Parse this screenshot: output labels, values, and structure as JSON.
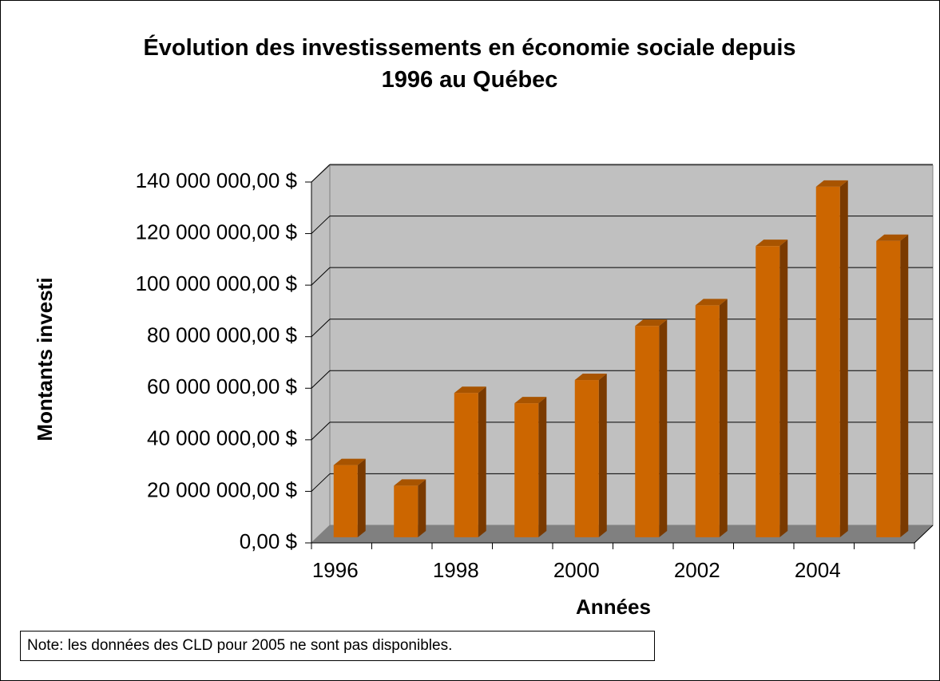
{
  "chart_data": {
    "type": "bar3d",
    "title": "Évolution des investissements en économie sociale depuis 1996 au Québec",
    "x_label": "Années",
    "y_label": "Montants investi",
    "note": "Note: les données des CLD pour 2005 ne sont pas disponibles.",
    "categories": [
      "1996",
      null,
      "1998",
      null,
      "2000",
      null,
      "2002",
      null,
      "2004",
      null
    ],
    "values": [
      28000000,
      20000000,
      56000000,
      52000000,
      61000000,
      82000000,
      90000000,
      113000000,
      136000000,
      115000000
    ],
    "color": "#cc6600",
    "ylim": [
      0,
      140000000
    ],
    "yticks": [
      {
        "value": 0,
        "label": "0,00 $"
      },
      {
        "value": 20000000,
        "label": "20 000 000,00 $"
      },
      {
        "value": 40000000,
        "label": "40 000 000,00 $"
      },
      {
        "value": 60000000,
        "label": "60 000 000,00 $"
      },
      {
        "value": 80000000,
        "label": "80 000 000,00 $"
      },
      {
        "value": 100000000,
        "label": "100 000 000,00 $"
      },
      {
        "value": 120000000,
        "label": "120 000 000,00 $"
      },
      {
        "value": 140000000,
        "label": "140 000 000,00 $"
      }
    ],
    "grid": true
  }
}
